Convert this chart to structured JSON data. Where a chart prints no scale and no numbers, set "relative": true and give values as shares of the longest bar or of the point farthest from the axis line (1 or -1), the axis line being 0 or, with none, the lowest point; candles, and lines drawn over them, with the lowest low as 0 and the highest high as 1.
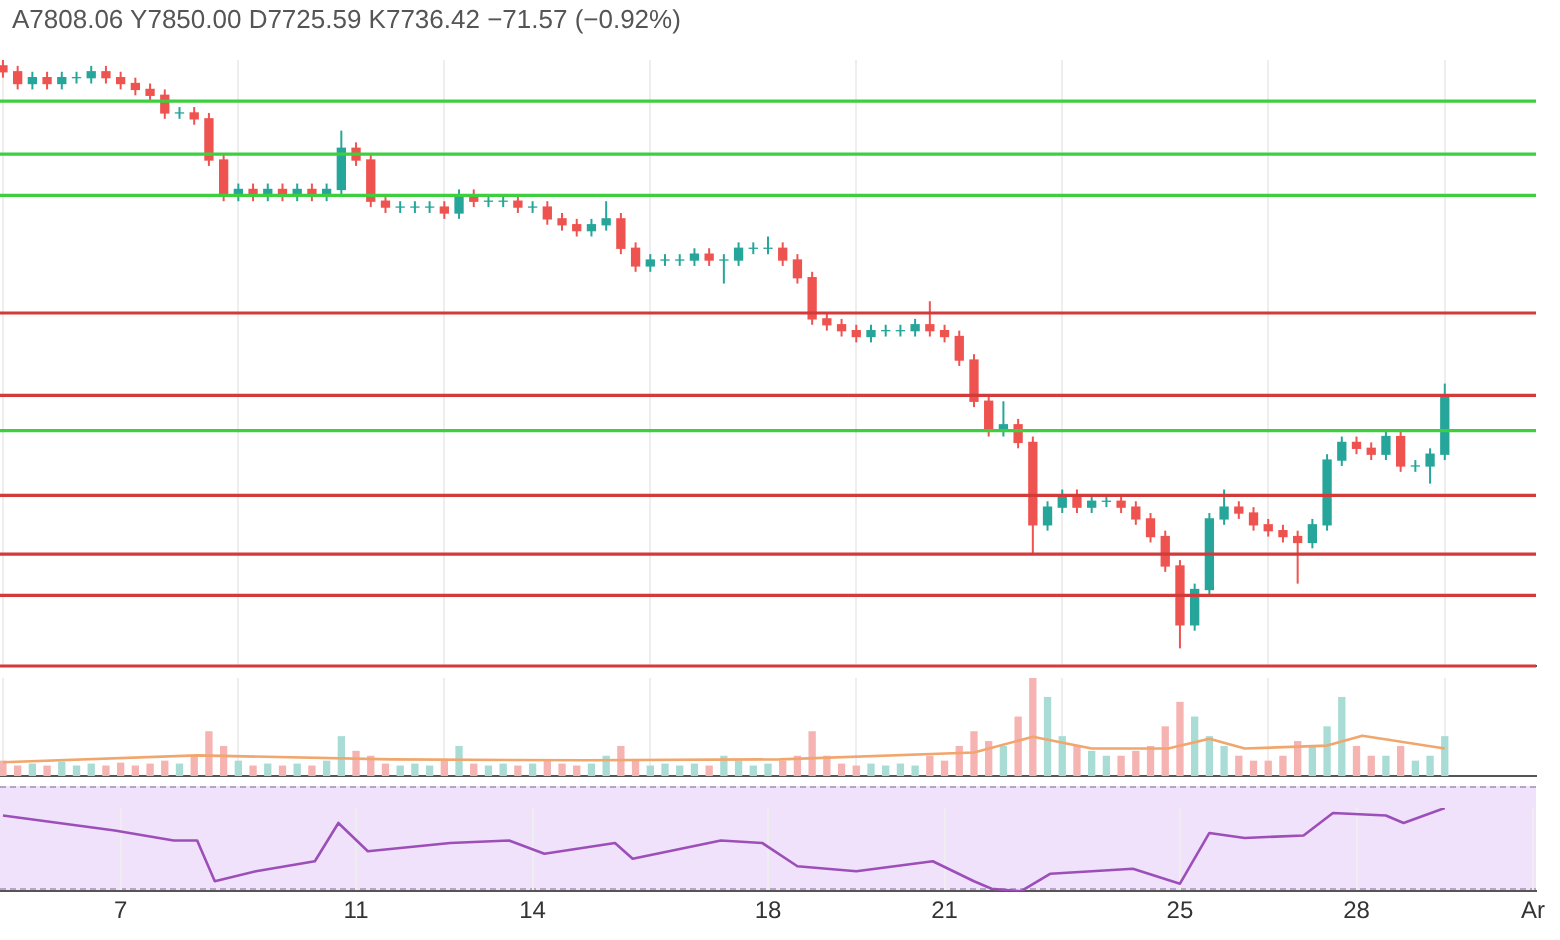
{
  "chart_data": [
    {
      "type": "candlestick",
      "relative": true,
      "grid": "x",
      "tick_labels": false,
      "annotations": [
        "A7808.06 Y7850.00 D7725.59 K7736.42 −71.57 (−0.92%)"
      ],
      "xlim": [
        4.95,
        31.05
      ],
      "xticks": [
        7,
        11,
        14,
        18,
        21,
        25,
        28
      ],
      "x": [
        5,
        5.25,
        5.5,
        5.75,
        6,
        6.25,
        6.5,
        6.75,
        7,
        7.25,
        7.5,
        7.75,
        8,
        8.25,
        8.5,
        8.75,
        9,
        9.25,
        9.5,
        9.75,
        10,
        10.25,
        10.5,
        10.75,
        11,
        11.25,
        11.5,
        11.75,
        12,
        12.25,
        12.5,
        12.75,
        13,
        13.25,
        13.5,
        13.75,
        14,
        14.25,
        14.5,
        14.75,
        15,
        15.25,
        15.5,
        15.75,
        16,
        16.25,
        16.5,
        16.75,
        17,
        17.25,
        17.5,
        17.75,
        18,
        18.25,
        18.5,
        18.75,
        19,
        19.25,
        19.5,
        19.75,
        20,
        20.25,
        20.5,
        20.75,
        21,
        21.25,
        21.5,
        21.75,
        22,
        22.25,
        22.5,
        22.75,
        23,
        23.25,
        23.5,
        23.75,
        24,
        24.25,
        24.5,
        24.75,
        25,
        25.25,
        25.5,
        25.75,
        26,
        26.25,
        26.5,
        26.75,
        27,
        27.25,
        27.5,
        27.75,
        28,
        28.25,
        28.5,
        28.75,
        29,
        29.25,
        29.5
      ],
      "ohlc": [
        [
          0.99,
          1.0,
          0.97,
          0.98
        ],
        [
          0.98,
          0.99,
          0.95,
          0.96
        ],
        [
          0.96,
          0.98,
          0.95,
          0.97
        ],
        [
          0.97,
          0.98,
          0.95,
          0.96
        ],
        [
          0.96,
          0.98,
          0.95,
          0.97
        ],
        [
          0.97,
          0.98,
          0.96,
          0.97
        ],
        [
          0.97,
          0.99,
          0.96,
          0.98
        ],
        [
          0.98,
          0.99,
          0.96,
          0.97
        ],
        [
          0.97,
          0.98,
          0.95,
          0.96
        ],
        [
          0.96,
          0.97,
          0.94,
          0.95
        ],
        [
          0.95,
          0.96,
          0.93,
          0.94
        ],
        [
          0.94,
          0.95,
          0.9,
          0.91
        ],
        [
          0.91,
          0.92,
          0.9,
          0.91
        ],
        [
          0.91,
          0.92,
          0.89,
          0.9
        ],
        [
          0.9,
          0.91,
          0.82,
          0.83
        ],
        [
          0.83,
          0.84,
          0.76,
          0.77
        ],
        [
          0.77,
          0.79,
          0.76,
          0.78
        ],
        [
          0.78,
          0.79,
          0.76,
          0.77
        ],
        [
          0.77,
          0.79,
          0.76,
          0.78
        ],
        [
          0.78,
          0.79,
          0.76,
          0.77
        ],
        [
          0.77,
          0.79,
          0.76,
          0.78
        ],
        [
          0.78,
          0.79,
          0.76,
          0.77
        ],
        [
          0.77,
          0.79,
          0.76,
          0.78
        ],
        [
          0.78,
          0.88,
          0.77,
          0.85
        ],
        [
          0.85,
          0.86,
          0.82,
          0.83
        ],
        [
          0.83,
          0.84,
          0.75,
          0.76
        ],
        [
          0.76,
          0.77,
          0.74,
          0.75
        ],
        [
          0.75,
          0.76,
          0.74,
          0.75
        ],
        [
          0.75,
          0.76,
          0.74,
          0.75
        ],
        [
          0.75,
          0.76,
          0.74,
          0.75
        ],
        [
          0.75,
          0.76,
          0.73,
          0.74
        ],
        [
          0.74,
          0.78,
          0.73,
          0.77
        ],
        [
          0.77,
          0.78,
          0.75,
          0.76
        ],
        [
          0.76,
          0.77,
          0.75,
          0.76
        ],
        [
          0.76,
          0.77,
          0.75,
          0.76
        ],
        [
          0.76,
          0.77,
          0.74,
          0.75
        ],
        [
          0.75,
          0.76,
          0.74,
          0.75
        ],
        [
          0.75,
          0.76,
          0.72,
          0.73
        ],
        [
          0.73,
          0.74,
          0.71,
          0.72
        ],
        [
          0.72,
          0.73,
          0.7,
          0.71
        ],
        [
          0.71,
          0.73,
          0.7,
          0.72
        ],
        [
          0.72,
          0.76,
          0.71,
          0.73
        ],
        [
          0.73,
          0.74,
          0.67,
          0.68
        ],
        [
          0.68,
          0.69,
          0.64,
          0.65
        ],
        [
          0.65,
          0.67,
          0.64,
          0.66
        ],
        [
          0.66,
          0.67,
          0.65,
          0.66
        ],
        [
          0.66,
          0.67,
          0.65,
          0.66
        ],
        [
          0.66,
          0.68,
          0.65,
          0.67
        ],
        [
          0.67,
          0.68,
          0.65,
          0.66
        ],
        [
          0.66,
          0.67,
          0.62,
          0.66
        ],
        [
          0.66,
          0.69,
          0.65,
          0.68
        ],
        [
          0.68,
          0.69,
          0.67,
          0.68
        ],
        [
          0.68,
          0.7,
          0.67,
          0.68
        ],
        [
          0.68,
          0.69,
          0.65,
          0.66
        ],
        [
          0.66,
          0.67,
          0.62,
          0.63
        ],
        [
          0.63,
          0.64,
          0.55,
          0.56
        ],
        [
          0.56,
          0.57,
          0.54,
          0.55
        ],
        [
          0.55,
          0.56,
          0.53,
          0.54
        ],
        [
          0.54,
          0.55,
          0.52,
          0.53
        ],
        [
          0.53,
          0.55,
          0.52,
          0.54
        ],
        [
          0.54,
          0.55,
          0.53,
          0.54
        ],
        [
          0.54,
          0.55,
          0.53,
          0.54
        ],
        [
          0.54,
          0.56,
          0.53,
          0.55
        ],
        [
          0.55,
          0.59,
          0.53,
          0.54
        ],
        [
          0.54,
          0.55,
          0.52,
          0.53
        ],
        [
          0.53,
          0.54,
          0.48,
          0.49
        ],
        [
          0.49,
          0.5,
          0.41,
          0.42
        ],
        [
          0.42,
          0.43,
          0.36,
          0.37
        ],
        [
          0.37,
          0.42,
          0.36,
          0.38
        ],
        [
          0.38,
          0.39,
          0.34,
          0.35
        ],
        [
          0.35,
          0.36,
          0.16,
          0.21
        ],
        [
          0.21,
          0.25,
          0.2,
          0.24
        ],
        [
          0.24,
          0.27,
          0.23,
          0.26
        ],
        [
          0.26,
          0.27,
          0.23,
          0.24
        ],
        [
          0.24,
          0.26,
          0.23,
          0.25
        ],
        [
          0.25,
          0.26,
          0.24,
          0.25
        ],
        [
          0.25,
          0.26,
          0.23,
          0.24
        ],
        [
          0.24,
          0.25,
          0.21,
          0.22
        ],
        [
          0.22,
          0.23,
          0.18,
          0.19
        ],
        [
          0.19,
          0.2,
          0.13,
          0.14
        ],
        [
          0.14,
          0.15,
          0.0,
          0.04
        ],
        [
          0.04,
          0.11,
          0.03,
          0.1
        ],
        [
          0.1,
          0.23,
          0.09,
          0.22
        ],
        [
          0.22,
          0.27,
          0.21,
          0.24
        ],
        [
          0.24,
          0.25,
          0.22,
          0.23
        ],
        [
          0.23,
          0.24,
          0.2,
          0.21
        ],
        [
          0.21,
          0.22,
          0.19,
          0.2
        ],
        [
          0.2,
          0.21,
          0.18,
          0.19
        ],
        [
          0.19,
          0.2,
          0.11,
          0.18
        ],
        [
          0.18,
          0.22,
          0.17,
          0.21
        ],
        [
          0.21,
          0.33,
          0.2,
          0.32
        ],
        [
          0.32,
          0.36,
          0.31,
          0.35
        ],
        [
          0.35,
          0.36,
          0.33,
          0.34
        ],
        [
          0.34,
          0.35,
          0.32,
          0.33
        ],
        [
          0.33,
          0.37,
          0.32,
          0.36
        ],
        [
          0.36,
          0.37,
          0.3,
          0.31
        ],
        [
          0.31,
          0.32,
          0.3,
          0.31
        ],
        [
          0.31,
          0.34,
          0.28,
          0.33
        ],
        [
          0.33,
          0.45,
          0.32,
          0.43
        ]
      ],
      "colors": [
        "#ef5350",
        "#ef5350",
        "#26a69a",
        "#ef5350",
        "#26a69a",
        "#26a69a",
        "#26a69a",
        "#ef5350",
        "#ef5350",
        "#ef5350",
        "#ef5350",
        "#ef5350",
        "#26a69a",
        "#ef5350",
        "#ef5350",
        "#ef5350",
        "#26a69a",
        "#ef5350",
        "#26a69a",
        "#ef5350",
        "#26a69a",
        "#ef5350",
        "#26a69a",
        "#26a69a",
        "#ef5350",
        "#ef5350",
        "#ef5350",
        "#26a69a",
        "#26a69a",
        "#26a69a",
        "#ef5350",
        "#26a69a",
        "#ef5350",
        "#26a69a",
        "#26a69a",
        "#ef5350",
        "#26a69a",
        "#ef5350",
        "#ef5350",
        "#ef5350",
        "#26a69a",
        "#26a69a",
        "#ef5350",
        "#ef5350",
        "#26a69a",
        "#26a69a",
        "#26a69a",
        "#26a69a",
        "#ef5350",
        "#26a69a",
        "#26a69a",
        "#26a69a",
        "#26a69a",
        "#ef5350",
        "#ef5350",
        "#ef5350",
        "#ef5350",
        "#ef5350",
        "#ef5350",
        "#26a69a",
        "#26a69a",
        "#26a69a",
        "#26a69a",
        "#ef5350",
        "#ef5350",
        "#ef5350",
        "#ef5350",
        "#ef5350",
        "#26a69a",
        "#ef5350",
        "#ef5350",
        "#26a69a",
        "#26a69a",
        "#ef5350",
        "#26a69a",
        "#26a69a",
        "#ef5350",
        "#ef5350",
        "#ef5350",
        "#ef5350",
        "#ef5350",
        "#26a69a",
        "#26a69a",
        "#26a69a",
        "#ef5350",
        "#ef5350",
        "#ef5350",
        "#ef5350",
        "#ef5350",
        "#26a69a",
        "#26a69a",
        "#26a69a",
        "#ef5350",
        "#ef5350",
        "#26a69a",
        "#ef5350",
        "#26a69a",
        "#26a69a",
        "#26a69a"
      ],
      "ref_lines": [
        {
          "axis": "y",
          "value": 0.93,
          "color": "#3ecf3e"
        },
        {
          "axis": "y",
          "value": 0.84,
          "color": "#3ecf3e"
        },
        {
          "axis": "y",
          "value": 0.77,
          "color": "#3ecf3e"
        },
        {
          "axis": "y",
          "value": 0.57,
          "color": "#d33b3b"
        },
        {
          "axis": "y",
          "value": 0.43,
          "color": "#d33b3b"
        },
        {
          "axis": "y",
          "value": 0.37,
          "color": "#3ecf3e"
        },
        {
          "axis": "y",
          "value": 0.26,
          "color": "#d33b3b"
        },
        {
          "axis": "y",
          "value": 0.16,
          "color": "#d33b3b"
        },
        {
          "axis": "y",
          "value": 0.09,
          "color": "#d33b3b"
        },
        {
          "axis": "y",
          "value": -0.03,
          "color": "#d33b3b"
        }
      ]
    },
    {
      "type": "bar",
      "relative": true,
      "grid": "x",
      "tick_labels": false,
      "xlim": [
        4.95,
        31.05
      ],
      "xticks": [
        7,
        11,
        14,
        18,
        21,
        25,
        28
      ],
      "x": [
        5,
        5.25,
        5.5,
        5.75,
        6,
        6.25,
        6.5,
        6.75,
        7,
        7.25,
        7.5,
        7.75,
        8,
        8.25,
        8.5,
        8.75,
        9,
        9.25,
        9.5,
        9.75,
        10,
        10.25,
        10.5,
        10.75,
        11,
        11.25,
        11.5,
        11.75,
        12,
        12.25,
        12.5,
        12.75,
        13,
        13.25,
        13.5,
        13.75,
        14,
        14.25,
        14.5,
        14.75,
        15,
        15.25,
        15.5,
        15.75,
        16,
        16.25,
        16.5,
        16.75,
        17,
        17.25,
        17.5,
        17.75,
        18,
        18.25,
        18.5,
        18.75,
        19,
        19.25,
        19.5,
        19.75,
        20,
        20.25,
        20.5,
        20.75,
        21,
        21.25,
        21.5,
        21.75,
        22,
        22.25,
        22.5,
        22.75,
        23,
        23.25,
        23.5,
        23.75,
        24,
        24.25,
        24.5,
        24.75,
        25,
        25.25,
        25.5,
        25.75,
        26,
        26.25,
        26.5,
        26.75,
        27,
        27.25,
        27.5,
        27.75,
        28,
        28.25,
        28.5,
        28.75,
        29,
        29.25,
        29.5
      ],
      "series": [
        {
          "values": [
            0.15,
            0.1,
            0.12,
            0.1,
            0.14,
            0.1,
            0.12,
            0.1,
            0.13,
            0.1,
            0.12,
            0.15,
            0.12,
            0.2,
            0.45,
            0.3,
            0.15,
            0.1,
            0.12,
            0.1,
            0.12,
            0.1,
            0.15,
            0.4,
            0.25,
            0.2,
            0.12,
            0.1,
            0.12,
            0.1,
            0.15,
            0.3,
            0.12,
            0.1,
            0.12,
            0.1,
            0.12,
            0.15,
            0.12,
            0.1,
            0.12,
            0.2,
            0.3,
            0.15,
            0.1,
            0.12,
            0.1,
            0.12,
            0.1,
            0.2,
            0.15,
            0.1,
            0.12,
            0.15,
            0.2,
            0.45,
            0.2,
            0.12,
            0.1,
            0.12,
            0.1,
            0.12,
            0.1,
            0.2,
            0.15,
            0.3,
            0.45,
            0.35,
            0.3,
            0.6,
            1,
            0.8,
            0.4,
            0.3,
            0.25,
            0.2,
            0.2,
            0.25,
            0.3,
            0.5,
            0.75,
            0.6,
            0.4,
            0.3,
            0.2,
            0.15,
            0.15,
            0.2,
            0.35,
            0.3,
            0.5,
            0.8,
            0.3,
            0.2,
            0.2,
            0.3,
            0.15,
            0.2,
            0.4
          ],
          "colors": [
            "#f5b3b2",
            "#f5b3b2",
            "#a8dcd5",
            "#f5b3b2",
            "#a8dcd5",
            "#a8dcd5",
            "#a8dcd5",
            "#f5b3b2",
            "#f5b3b2",
            "#f5b3b2",
            "#f5b3b2",
            "#f5b3b2",
            "#a8dcd5",
            "#f5b3b2",
            "#f5b3b2",
            "#f5b3b2",
            "#a8dcd5",
            "#f5b3b2",
            "#a8dcd5",
            "#f5b3b2",
            "#a8dcd5",
            "#f5b3b2",
            "#a8dcd5",
            "#a8dcd5",
            "#f5b3b2",
            "#f5b3b2",
            "#f5b3b2",
            "#a8dcd5",
            "#a8dcd5",
            "#a8dcd5",
            "#f5b3b2",
            "#a8dcd5",
            "#f5b3b2",
            "#a8dcd5",
            "#a8dcd5",
            "#f5b3b2",
            "#a8dcd5",
            "#f5b3b2",
            "#f5b3b2",
            "#f5b3b2",
            "#a8dcd5",
            "#a8dcd5",
            "#f5b3b2",
            "#f5b3b2",
            "#a8dcd5",
            "#a8dcd5",
            "#a8dcd5",
            "#a8dcd5",
            "#f5b3b2",
            "#a8dcd5",
            "#a8dcd5",
            "#a8dcd5",
            "#a8dcd5",
            "#f5b3b2",
            "#f5b3b2",
            "#f5b3b2",
            "#f5b3b2",
            "#f5b3b2",
            "#f5b3b2",
            "#a8dcd5",
            "#a8dcd5",
            "#a8dcd5",
            "#a8dcd5",
            "#f5b3b2",
            "#f5b3b2",
            "#f5b3b2",
            "#f5b3b2",
            "#f5b3b2",
            "#a8dcd5",
            "#f5b3b2",
            "#f5b3b2",
            "#a8dcd5",
            "#a8dcd5",
            "#f5b3b2",
            "#a8dcd5",
            "#a8dcd5",
            "#f5b3b2",
            "#f5b3b2",
            "#f5b3b2",
            "#f5b3b2",
            "#f5b3b2",
            "#a8dcd5",
            "#a8dcd5",
            "#a8dcd5",
            "#f5b3b2",
            "#f5b3b2",
            "#f5b3b2",
            "#f5b3b2",
            "#f5b3b2",
            "#a8dcd5",
            "#a8dcd5",
            "#a8dcd5",
            "#f5b3b2",
            "#f5b3b2",
            "#a8dcd5",
            "#f5b3b2",
            "#a8dcd5",
            "#a8dcd5",
            "#a8dcd5"
          ]
        },
        {
          "type": "line",
          "color": "#f0a66c",
          "x": [
            5,
            8.3,
            11.6,
            14.9,
            18.2,
            21.5,
            22.5,
            23.5,
            24.8,
            25.5,
            26.1,
            27.5,
            28.1,
            29.5
          ],
          "values": [
            0.14,
            0.21,
            0.17,
            0.16,
            0.17,
            0.24,
            0.4,
            0.28,
            0.28,
            0.38,
            0.28,
            0.31,
            0.41,
            0.28
          ]
        }
      ]
    },
    {
      "type": "line",
      "relative": true,
      "grid": "x",
      "tick_labels": "x",
      "color": "#9c4fb8",
      "xlim": [
        4.95,
        31.05
      ],
      "xticks": [
        7,
        11,
        14,
        18,
        21,
        25,
        28,
        {
          "value": 31,
          "label": "Ar"
        }
      ],
      "x": [
        5,
        6.9,
        7.9,
        8.3,
        8.6,
        9.3,
        10.3,
        10.7,
        11.2,
        12.6,
        13.6,
        14.2,
        15.4,
        15.7,
        17.2,
        17.9,
        18.5,
        19.5,
        20.8,
        21.5,
        21.8,
        22.3,
        22.8,
        24.2,
        25,
        25.5,
        26.1,
        27.1,
        27.6,
        28.5,
        28.8,
        29.5
      ],
      "values": [
        0.91,
        0.73,
        0.61,
        0.61,
        0.12,
        0.24,
        0.36,
        0.82,
        0.48,
        0.58,
        0.61,
        0.45,
        0.58,
        0.39,
        0.61,
        0.58,
        0.3,
        0.24,
        0.36,
        0.12,
        0.03,
        0,
        0.21,
        0.27,
        0.09,
        0.7,
        0.64,
        0.67,
        0.94,
        0.91,
        0.82,
        1
      ]
    }
  ]
}
